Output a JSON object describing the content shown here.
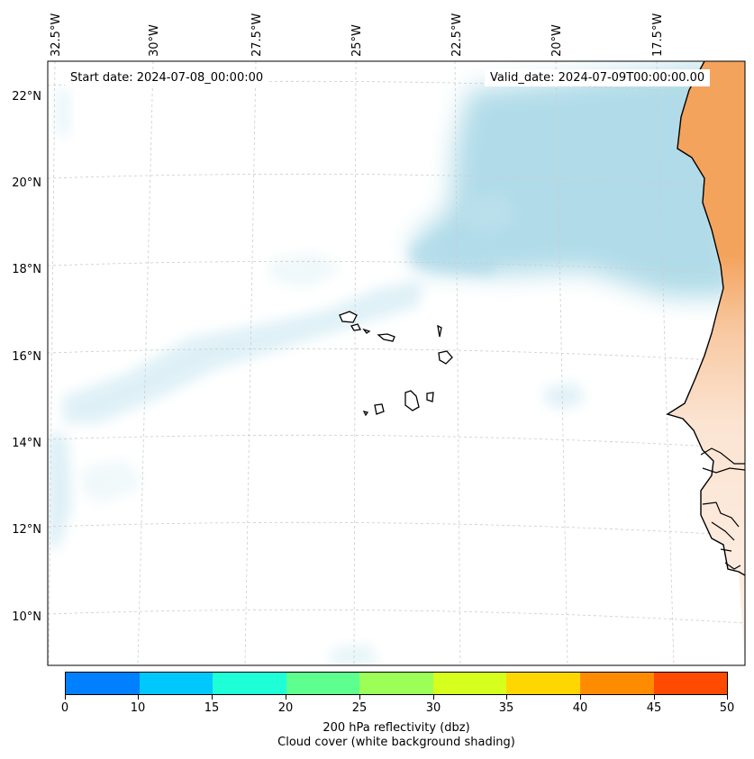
{
  "map": {
    "lon_labels": [
      "32.5°W",
      "30°W",
      "27.5°W",
      "25°W",
      "22.5°W",
      "20°W",
      "17.5°W"
    ],
    "lat_labels": [
      "22°N",
      "20°N",
      "18°N",
      "16°N",
      "14°N",
      "12°N",
      "10°N"
    ],
    "start_date": "Start date: 2024-07-08_00:00:00",
    "valid_date": "Valid_date: 2024-07-09T00:00:00.00"
  },
  "colorbar": {
    "ticks": [
      "0",
      "10",
      "15",
      "20",
      "25",
      "30",
      "35",
      "40",
      "45",
      "50"
    ],
    "colors": [
      "#0080ff",
      "#00c8ff",
      "#1effd8",
      "#5dff8f",
      "#9bff58",
      "#d7ff1e",
      "#ffd700",
      "#ff8c00",
      "#ff4a00"
    ],
    "label_line1": "200 hPa reflectivity (dbz)",
    "label_line2": "Cloud cover (white background shading)"
  },
  "styles": {
    "cloud_color": "#a9d8e6",
    "land_warm_color": "#f4a35d",
    "land_light_color": "#fbe1cc",
    "coast_color": "#000000",
    "grid_color": "#cccccc"
  }
}
